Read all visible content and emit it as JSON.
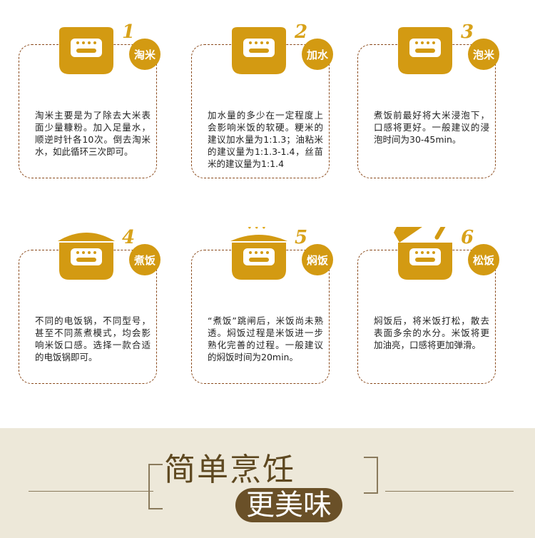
{
  "steps": [
    {
      "number": "1",
      "label": "淘米",
      "text": "淘米主要是为了除去大米表面少量糠粉。加入足量水，顺逆时针各10次。倒去淘米水，如此循环三次即可。"
    },
    {
      "number": "2",
      "label": "加水",
      "text": "加水量的多少在一定程度上会影响米饭的软硬。粳米的建议加水量为1:1.3；油粘米的建议量为1:1.3-1.4，丝苗米的建议量为1:1.4"
    },
    {
      "number": "3",
      "label": "泡米",
      "text": "煮饭前最好将大米浸泡下，口感将更好。一般建议的浸泡时间为30-45min。"
    },
    {
      "number": "4",
      "label": "煮饭",
      "text": "不同的电饭锅，不同型号，甚至不同蒸煮模式，均会影响米饭口感。选择一款合适的电饭锅即可。"
    },
    {
      "number": "5",
      "label": "焖饭",
      "text": "“煮饭”跳闸后，米饭尚未熟透。焖饭过程是米饭进一步熟化完善的过程。一般建议的焖饭时间为20min。"
    },
    {
      "number": "6",
      "label": "松饭",
      "text": "焖饭后，将米饭打松，散去表面多余的水分。米饭将更加油亮，口感将更加弹滑。"
    }
  ],
  "footer": {
    "title_line1": "简单烹饪",
    "title_line2": "更美味"
  },
  "colors": {
    "gold": "#d39a12",
    "brown_dash": "#8a4a1c",
    "footer_bg": "#ede8d9"
  }
}
